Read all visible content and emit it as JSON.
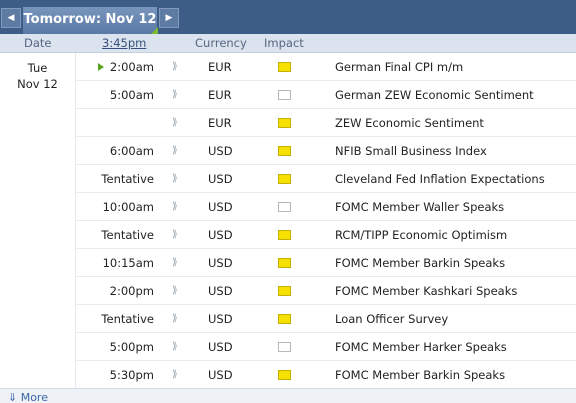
{
  "nav": {
    "prev_glyph": "◀",
    "next_glyph": "▶",
    "date_label": "Tomorrow: Nov 12"
  },
  "columns": {
    "date": "Date",
    "time": "3:45pm",
    "currency": "Currency",
    "impact": "Impact"
  },
  "day": {
    "weekday": "Tue",
    "date": "Nov 12"
  },
  "alert_glyph": "⟫",
  "impact_colors": {
    "low": "#f6e000",
    "medium": "#ee7a22"
  },
  "events": [
    {
      "time": "2:00am",
      "currency": "EUR",
      "impact": "low",
      "event": "German Final CPI m/m",
      "current": true
    },
    {
      "time": "5:00am",
      "currency": "EUR",
      "impact": "medium",
      "event": "German ZEW Economic Sentiment"
    },
    {
      "time": "",
      "currency": "EUR",
      "impact": "low",
      "event": "ZEW Economic Sentiment"
    },
    {
      "time": "6:00am",
      "currency": "USD",
      "impact": "low",
      "event": "NFIB Small Business Index"
    },
    {
      "time": "Tentative",
      "currency": "USD",
      "impact": "low",
      "event": "Cleveland Fed Inflation Expectations"
    },
    {
      "time": "10:00am",
      "currency": "USD",
      "impact": "medium",
      "event": "FOMC Member Waller Speaks"
    },
    {
      "time": "Tentative",
      "currency": "USD",
      "impact": "low",
      "event": "RCM/TIPP Economic Optimism"
    },
    {
      "time": "10:15am",
      "currency": "USD",
      "impact": "low",
      "event": "FOMC Member Barkin Speaks"
    },
    {
      "time": "2:00pm",
      "currency": "USD",
      "impact": "low",
      "event": "FOMC Member Kashkari Speaks"
    },
    {
      "time": "Tentative",
      "currency": "USD",
      "impact": "low",
      "event": "Loan Officer Survey"
    },
    {
      "time": "5:00pm",
      "currency": "USD",
      "impact": "medium",
      "event": "FOMC Member Harker Speaks"
    },
    {
      "time": "5:30pm",
      "currency": "USD",
      "impact": "low",
      "event": "FOMC Member Barkin Speaks"
    }
  ],
  "footer": {
    "more_label": "⇓ More"
  }
}
